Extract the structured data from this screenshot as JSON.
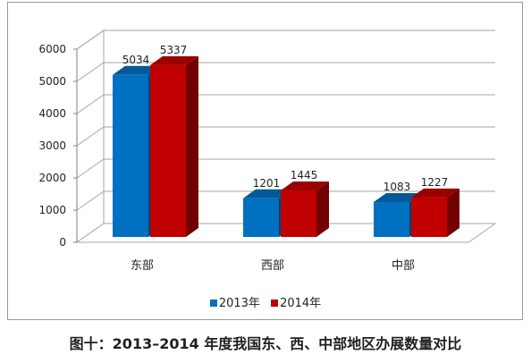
{
  "chart_data": {
    "type": "bar",
    "categories": [
      "东部",
      "西部",
      "中部"
    ],
    "series": [
      {
        "name": "2013年",
        "values": [
          5034,
          1201,
          1083
        ],
        "color": "#0070c0"
      },
      {
        "name": "2014年",
        "values": [
          5337,
          1445,
          1227
        ],
        "color": "#c00000"
      }
    ],
    "yticks": [
      0,
      1000,
      2000,
      3000,
      4000,
      5000,
      6000
    ],
    "ylim": [
      0,
      6000
    ],
    "grid": true,
    "legend_position": "bottom",
    "style": "3d-clustered-column"
  },
  "caption": "图十：2013–2014 年度我国东、西、中部地区办展数量对比"
}
